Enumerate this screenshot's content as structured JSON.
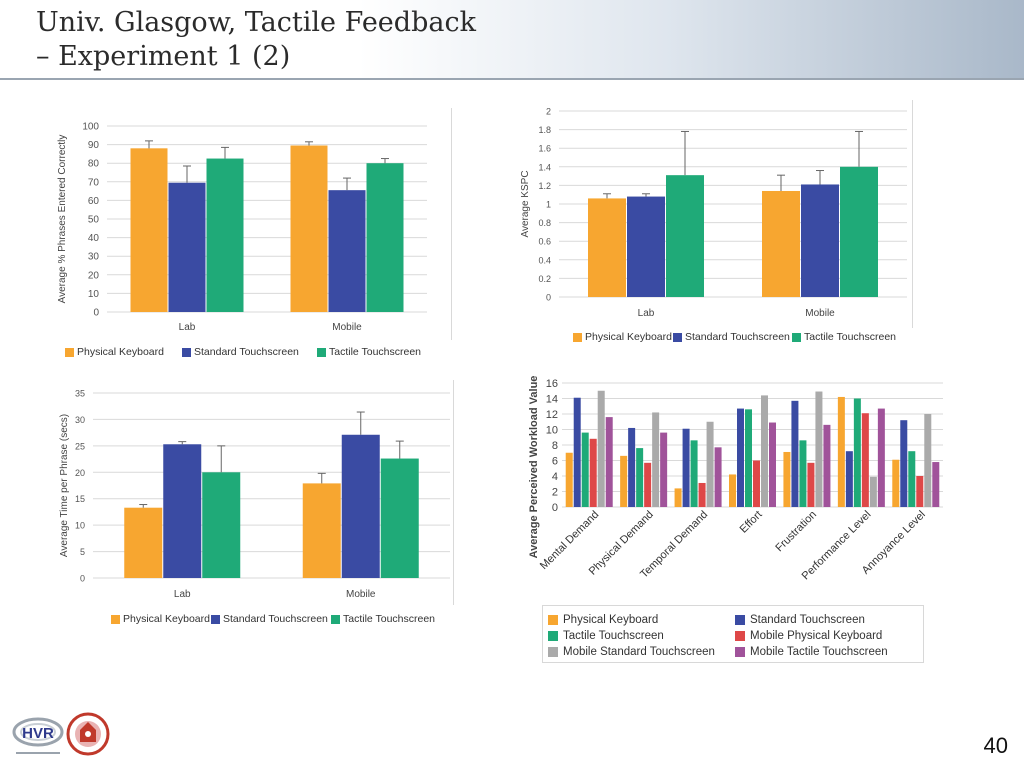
{
  "slide": {
    "title_line1": "Univ. Glasgow, Tactile Feedback",
    "title_line2": "– Experiment 1 (2)",
    "page_number": "40",
    "logo_text": "HVR"
  },
  "colors": {
    "physical_keyboard": "#F7A630",
    "standard_touchscreen": "#3A4BA3",
    "tactile_touchscreen": "#1FAA78",
    "mobile_physical_keyboard": "#DE4848",
    "mobile_standard_touchscreen": "#AAAAAA",
    "mobile_tactile_touchscreen": "#A0539A"
  },
  "chart_data": [
    {
      "type": "bar",
      "ylabel": "Average % Phrases Entered Correctly",
      "ylim": [
        0,
        100
      ],
      "yticks": [
        "0",
        "10",
        "20",
        "30",
        "40",
        "50",
        "60",
        "70",
        "80",
        "90",
        "100"
      ],
      "categories": [
        "Lab",
        "Mobile"
      ],
      "series": [
        {
          "name": "Physical Keyboard",
          "values": [
            88,
            89.5
          ],
          "errors": [
            4,
            2
          ]
        },
        {
          "name": "Standard Touchscreen",
          "values": [
            69.5,
            65.5
          ],
          "errors": [
            9,
            6.5
          ]
        },
        {
          "name": "Tactile Touchscreen",
          "values": [
            82.5,
            80
          ],
          "errors": [
            6,
            2.5
          ]
        }
      ],
      "legend": "bottom"
    },
    {
      "type": "bar",
      "ylabel": "Average KSPC",
      "ylim": [
        0,
        2
      ],
      "yticks": [
        "0",
        "0.2",
        "0.4",
        "0.6",
        "0.8",
        "1",
        "1.2",
        "1.4",
        "1.6",
        "1.8",
        "2"
      ],
      "categories": [
        "Lab",
        "Mobile"
      ],
      "series": [
        {
          "name": "Physical Keyboard",
          "values": [
            1.06,
            1.14
          ],
          "errors": [
            0.05,
            0.17
          ]
        },
        {
          "name": "Standard Touchscreen",
          "values": [
            1.08,
            1.21
          ],
          "errors": [
            0.03,
            0.15
          ]
        },
        {
          "name": "Tactile Touchscreen",
          "values": [
            1.31,
            1.4
          ],
          "errors": [
            0.47,
            0.38
          ]
        }
      ],
      "legend": "bottom"
    },
    {
      "type": "bar",
      "ylabel": "Average Time per Phrase (secs)",
      "ylim": [
        0,
        35
      ],
      "yticks": [
        "0",
        "5",
        "10",
        "15",
        "20",
        "25",
        "30",
        "35"
      ],
      "categories": [
        "Lab",
        "Mobile"
      ],
      "series": [
        {
          "name": "Physical Keyboard",
          "values": [
            13.3,
            17.9
          ],
          "errors": [
            0.6,
            1.9
          ]
        },
        {
          "name": "Standard Touchscreen",
          "values": [
            25.3,
            27.1
          ],
          "errors": [
            0.5,
            4.3
          ]
        },
        {
          "name": "Tactile Touchscreen",
          "values": [
            20,
            22.6
          ],
          "errors": [
            5,
            3.3
          ]
        }
      ],
      "legend": "bottom"
    },
    {
      "type": "bar",
      "ylabel": "Average Perceived Workload Value",
      "ylim": [
        0,
        16
      ],
      "yticks": [
        "0",
        "2",
        "4",
        "6",
        "8",
        "10",
        "12",
        "14",
        "16"
      ],
      "categories": [
        "Mental Demand",
        "Physical Demand",
        "Temporal Demand",
        "Effort",
        "Frustration",
        "Performance Level",
        "Annoyance Level"
      ],
      "series": [
        {
          "name": "Physical Keyboard",
          "values": [
            7,
            6.6,
            2.4,
            4.2,
            7.1,
            14.2,
            6.1
          ]
        },
        {
          "name": "Standard Touchscreen",
          "values": [
            14.1,
            10.2,
            10.1,
            12.7,
            13.7,
            7.2,
            11.2
          ]
        },
        {
          "name": "Tactile Touchscreen",
          "values": [
            9.6,
            7.6,
            8.6,
            12.6,
            8.6,
            14,
            7.2
          ]
        },
        {
          "name": "Mobile Physical Keyboard",
          "values": [
            8.8,
            5.7,
            3.1,
            6,
            5.7,
            12.1,
            4
          ]
        },
        {
          "name": "Mobile Standard Touchscreen",
          "values": [
            15,
            12.2,
            11,
            14.4,
            14.9,
            3.9,
            12
          ]
        },
        {
          "name": "Mobile Tactile Touchscreen",
          "values": [
            11.6,
            9.6,
            7.7,
            10.9,
            10.6,
            12.7,
            5.8
          ]
        }
      ],
      "legend": "bottom"
    }
  ]
}
